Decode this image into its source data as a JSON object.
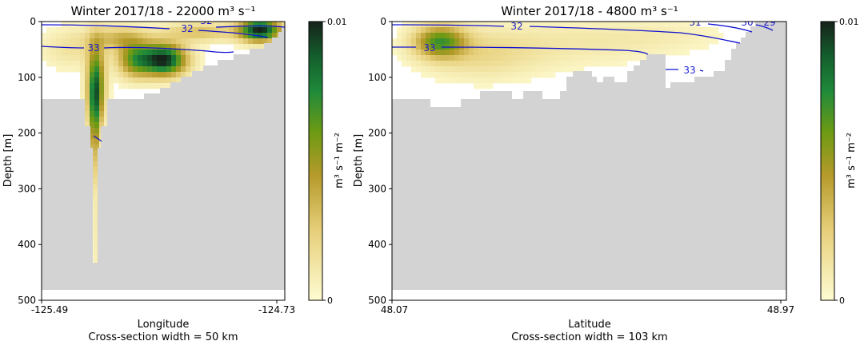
{
  "chart_data": [
    {
      "type": "heatmap",
      "title": "Winter 2017/18 - 22000 m³ s⁻¹",
      "xlabel": "Longitude",
      "subtitle": "Cross-section width = 50 km",
      "ylabel": "Depth [m]",
      "x_ticks": [
        "-125.49",
        "-124.73"
      ],
      "y_ticks": [
        0,
        100,
        200,
        300,
        400,
        500
      ],
      "ylim": [
        500,
        0
      ],
      "colorbar": {
        "label": "m³ s⁻¹ m⁻²",
        "ticks": [
          "0.01",
          "0"
        ]
      },
      "contour_labels": [
        "32",
        "33",
        "32"
      ],
      "land_color": "#d3d3d3"
    },
    {
      "type": "heatmap",
      "title": "Winter 2017/18 - 4800 m³ s⁻¹",
      "xlabel": "Latitude",
      "subtitle": "Cross-section width = 103 km",
      "ylabel": "Depth [m]",
      "x_ticks": [
        "48.07",
        "48.97"
      ],
      "y_ticks": [
        0,
        100,
        200,
        300,
        400,
        500
      ],
      "ylim": [
        500,
        0
      ],
      "colorbar": {
        "label": "m³ s⁻¹ m⁻²",
        "ticks": [
          "0.01",
          "0"
        ]
      },
      "contour_labels": [
        "32",
        "33",
        "31",
        "30",
        "29",
        "33"
      ],
      "land_color": "#d3d3d3"
    }
  ]
}
